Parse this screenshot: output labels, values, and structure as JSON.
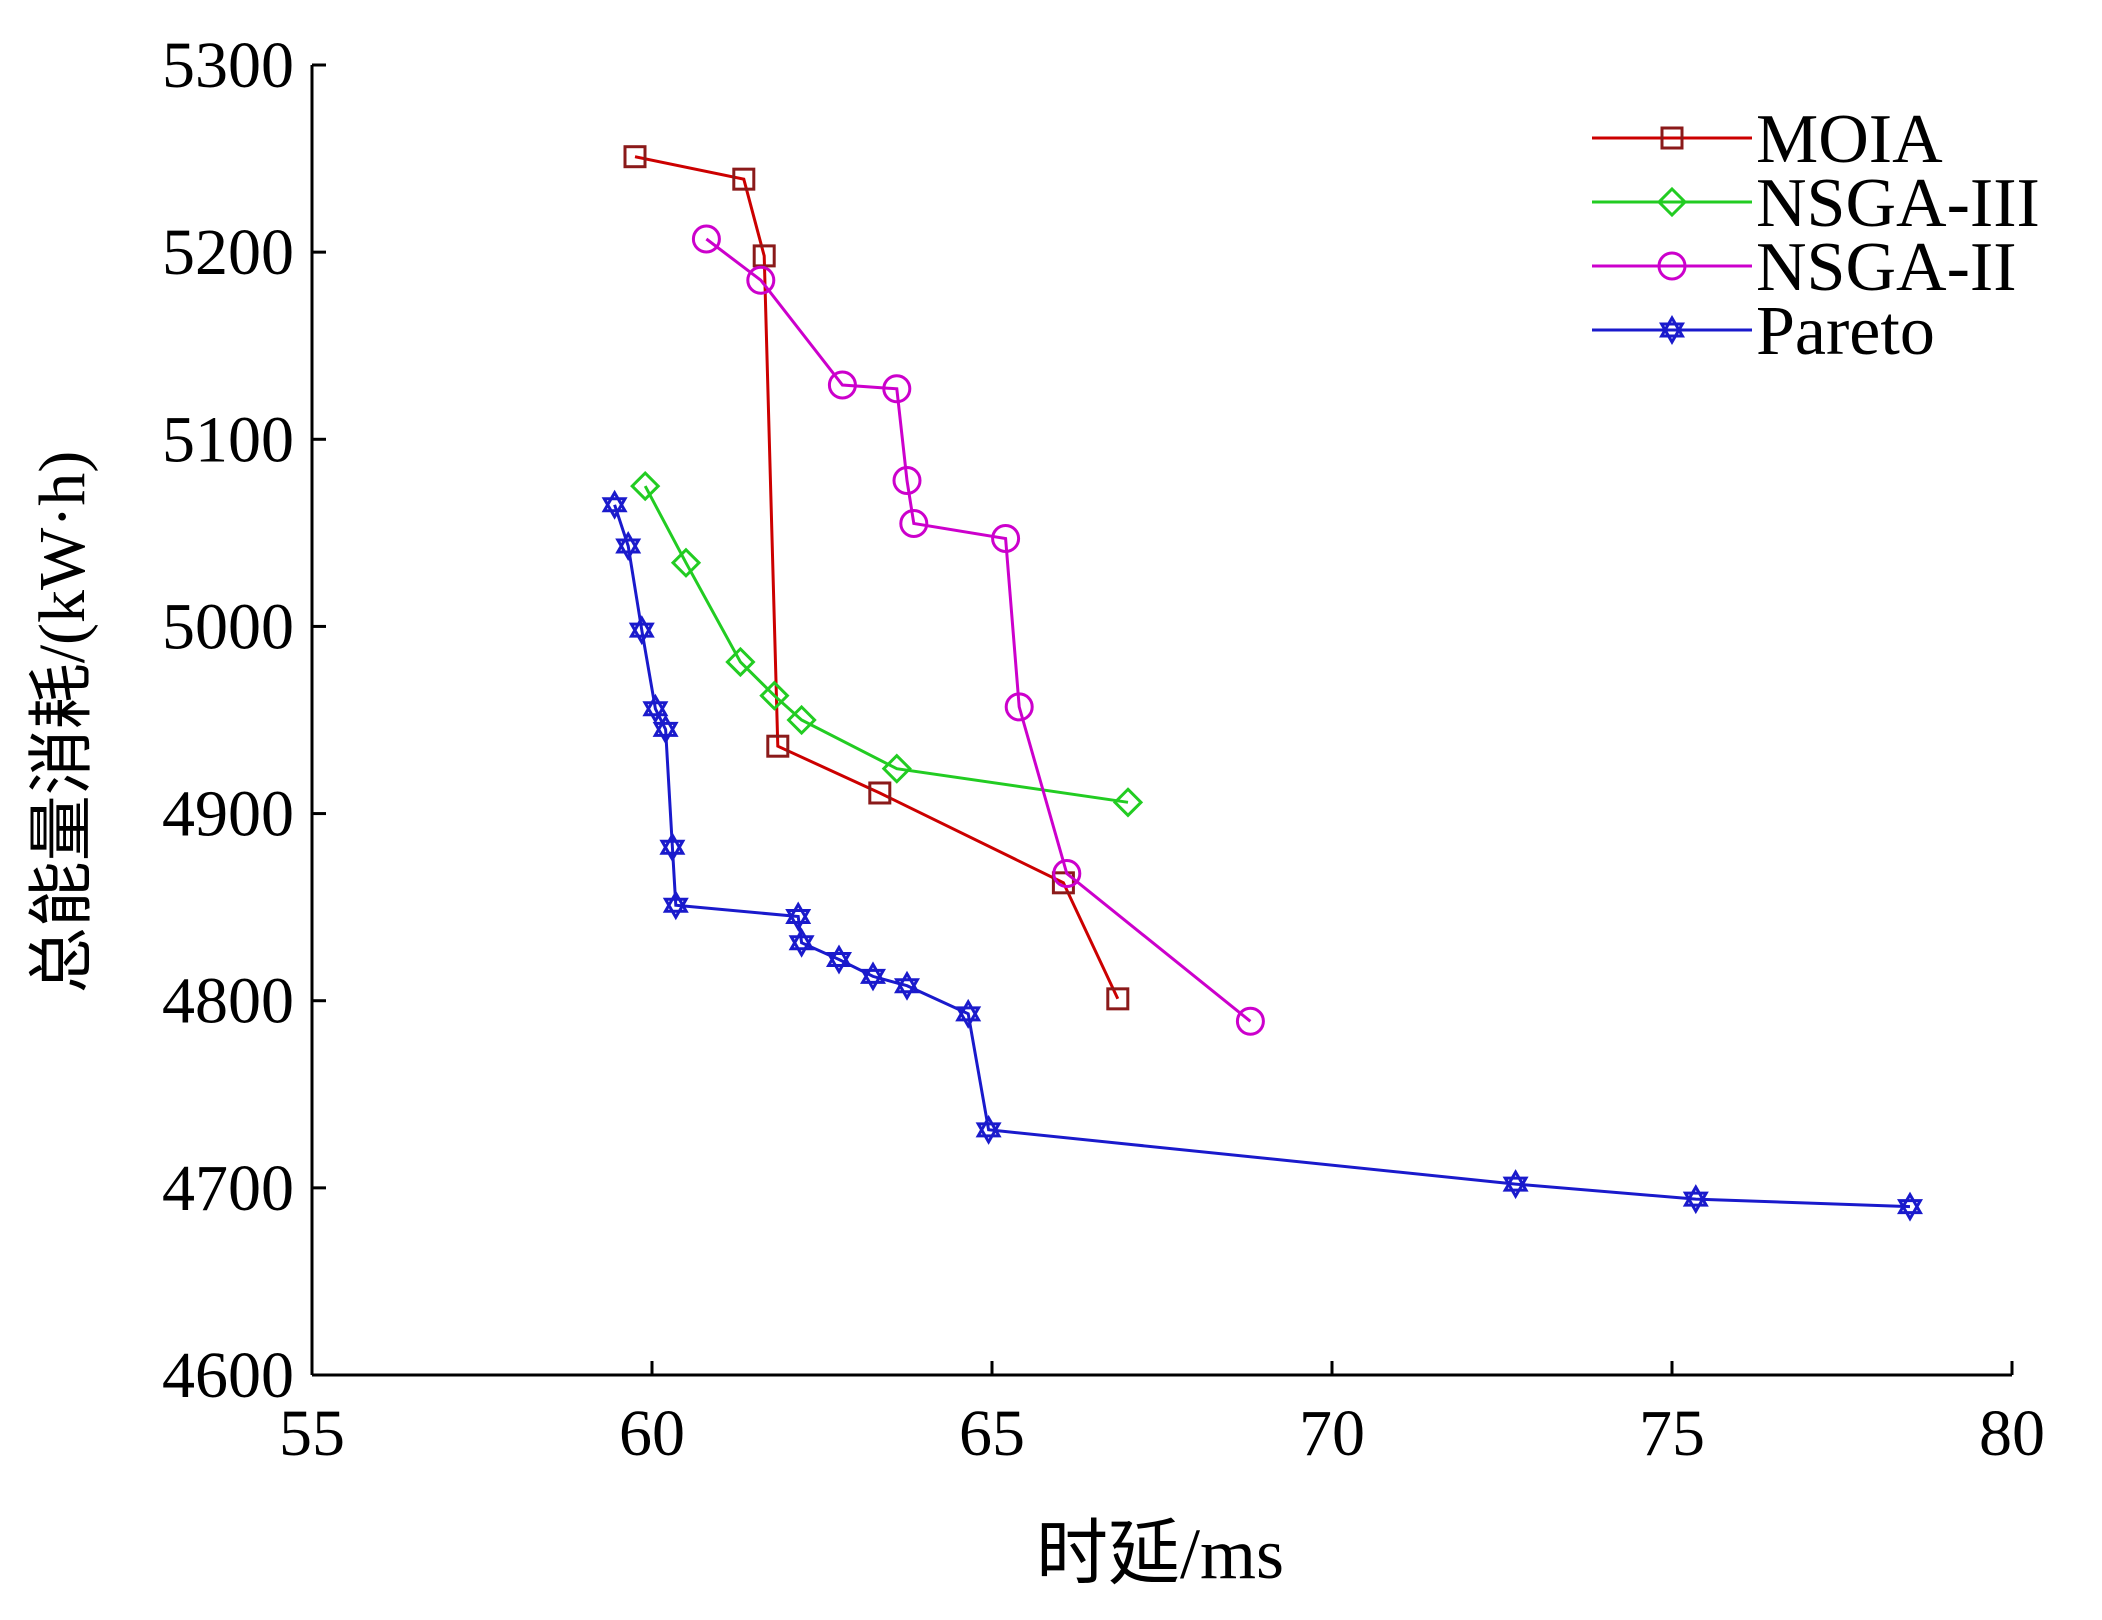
{
  "chart_data": {
    "type": "line",
    "xlabel": "时延/ms",
    "ylabel": "总能量消耗/(kW·h)",
    "xlim": [
      55,
      80
    ],
    "ylim": [
      4600,
      5300
    ],
    "xticks": [
      55,
      60,
      65,
      70,
      75,
      80
    ],
    "yticks": [
      4600,
      4700,
      4800,
      4900,
      5000,
      5100,
      5200,
      5300
    ],
    "grid": false,
    "legend_position": "top-right",
    "series": [
      {
        "name": "MOIA",
        "color": "#cc0000",
        "marker": "square",
        "marker_color": "#8b1a1a",
        "x": [
          59.75,
          61.35,
          61.65,
          61.85,
          63.35,
          66.05,
          66.85
        ],
        "y": [
          5251,
          5239,
          5198,
          4936,
          4911,
          4863,
          4801
        ]
      },
      {
        "name": "NSGA-III",
        "color": "#22cc22",
        "marker": "diamond",
        "marker_color": "#22cc22",
        "x": [
          59.9,
          60.5,
          61.3,
          61.8,
          62.2,
          63.6,
          67.0
        ],
        "y": [
          5075,
          5034,
          4981,
          4963,
          4950,
          4924,
          4906
        ]
      },
      {
        "name": "NSGA-II",
        "color": "#cc00cc",
        "marker": "circle",
        "marker_color": "#cc00cc",
        "x": [
          60.8,
          61.6,
          62.8,
          63.6,
          63.75,
          63.85,
          65.2,
          65.4,
          66.1,
          68.8
        ],
        "y": [
          5207,
          5185,
          5129,
          5127,
          5078,
          5055,
          5047,
          4957,
          4868,
          4789
        ]
      },
      {
        "name": "Pareto",
        "color": "#1a1acc",
        "marker": "hexagram",
        "marker_color": "#1a1acc",
        "x": [
          59.45,
          59.65,
          59.85,
          60.05,
          60.2,
          60.3,
          60.35,
          62.15,
          62.2,
          62.75,
          63.25,
          63.75,
          64.65,
          64.95,
          72.7,
          75.35,
          78.5
        ],
        "y": [
          5065,
          5043,
          4998,
          4956,
          4945,
          4882,
          4851,
          4845,
          4831,
          4822,
          4813,
          4808,
          4793,
          4731,
          4702,
          4694,
          4690
        ]
      }
    ]
  }
}
